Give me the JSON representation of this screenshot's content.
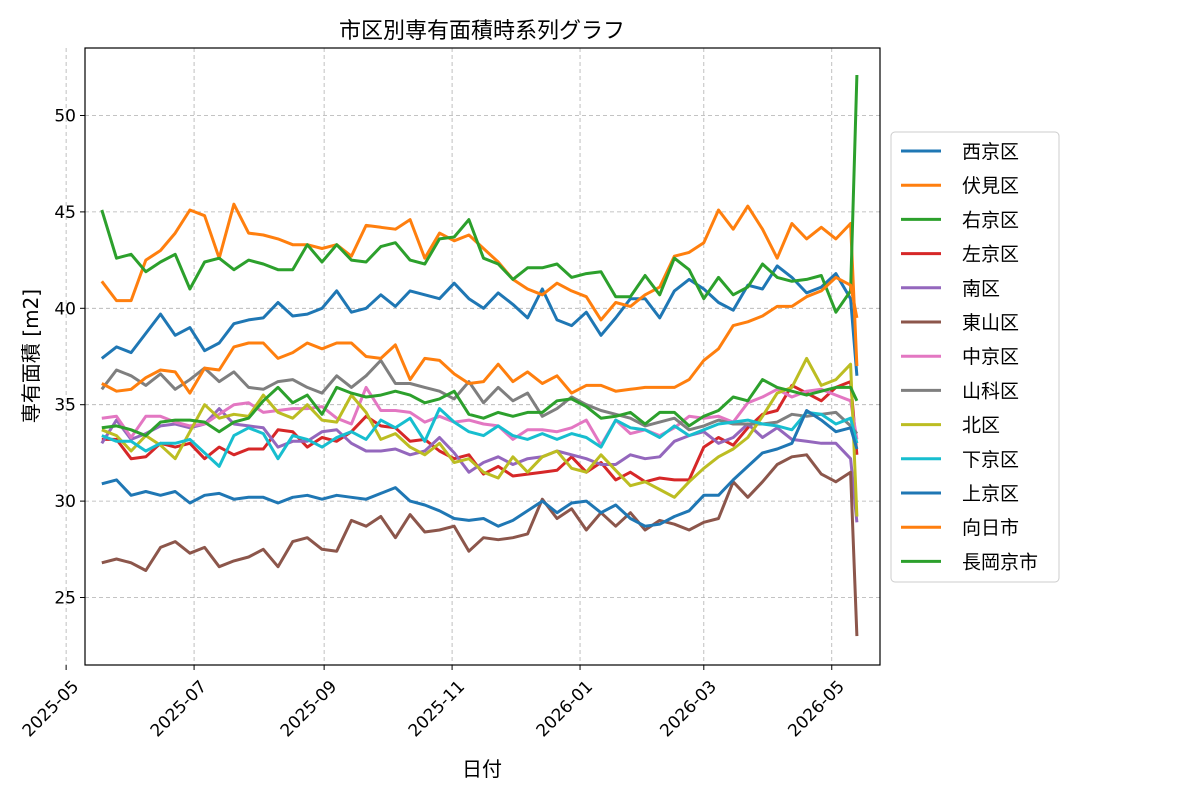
{
  "chart_data": {
    "type": "line",
    "title": "市区別専有面積時系列グラフ",
    "xlabel": "日付",
    "ylabel": "専有面積 [m2]",
    "ylim": [
      21.5,
      53.5
    ],
    "xlim": [
      "2025-05-10",
      "2026-05-24"
    ],
    "x_ticks": [
      "2025-05",
      "2025-07",
      "2025-09",
      "2025-11",
      "2026-01",
      "2026-03",
      "2026-05"
    ],
    "y_ticks": [
      25,
      30,
      35,
      40,
      45,
      50
    ],
    "grid": true,
    "legend_position": "right",
    "x": [
      "2025-05-18",
      "2025-05-25",
      "2025-06-01",
      "2025-06-08",
      "2025-06-15",
      "2025-06-22",
      "2025-06-29",
      "2025-07-06",
      "2025-07-13",
      "2025-07-20",
      "2025-07-27",
      "2025-08-03",
      "2025-08-10",
      "2025-08-17",
      "2025-08-24",
      "2025-08-31",
      "2025-09-07",
      "2025-09-14",
      "2025-09-21",
      "2025-09-28",
      "2025-10-05",
      "2025-10-12",
      "2025-10-19",
      "2025-10-26",
      "2025-11-02",
      "2025-11-09",
      "2025-11-16",
      "2025-11-23",
      "2025-11-30",
      "2025-12-07",
      "2025-12-14",
      "2025-12-21",
      "2025-12-28",
      "2026-01-04",
      "2026-01-11",
      "2026-01-18",
      "2026-01-25",
      "2026-02-01",
      "2026-02-08",
      "2026-02-15",
      "2026-02-22",
      "2026-03-01",
      "2026-03-08",
      "2026-03-15",
      "2026-03-22",
      "2026-03-29",
      "2026-04-05",
      "2026-04-12",
      "2026-04-19",
      "2026-04-26",
      "2026-05-03",
      "2026-05-10",
      "2026-05-13"
    ],
    "series": [
      {
        "name": "西京区",
        "color": "#1f77b4",
        "values": [
          37.4,
          38.0,
          37.7,
          38.7,
          39.7,
          38.6,
          39.0,
          37.8,
          38.2,
          39.2,
          39.4,
          39.5,
          40.3,
          39.6,
          39.7,
          40.0,
          40.9,
          39.8,
          40.0,
          40.7,
          40.1,
          40.9,
          40.7,
          40.5,
          41.3,
          40.5,
          40.0,
          40.8,
          40.2,
          39.5,
          41.0,
          39.4,
          39.1,
          39.8,
          38.6,
          39.5,
          40.5,
          40.5,
          39.5,
          40.9,
          41.5,
          41.0,
          40.3,
          39.9,
          41.2,
          41.0,
          42.2,
          41.6,
          40.8,
          41.1,
          41.8,
          40.5,
          36.5
        ]
      },
      {
        "name": "伏見区",
        "color": "#ff7f0e",
        "values": [
          41.4,
          40.4,
          40.4,
          42.5,
          43.0,
          43.9,
          45.1,
          44.8,
          42.6,
          45.4,
          43.9,
          43.8,
          43.6,
          43.3,
          43.3,
          43.1,
          43.3,
          42.7,
          44.3,
          44.2,
          44.1,
          44.6,
          42.6,
          43.9,
          43.5,
          43.8,
          43.1,
          42.4,
          41.5,
          41.0,
          40.7,
          41.3,
          40.9,
          40.6,
          39.4,
          40.3,
          40.1,
          40.7,
          41.1,
          42.7,
          42.9,
          43.4,
          45.1,
          44.1,
          45.3,
          44.1,
          42.6,
          44.4,
          43.6,
          44.2,
          43.6,
          44.4,
          37.0
        ]
      },
      {
        "name": "右京区",
        "color": "#2ca02c",
        "values": [
          45.1,
          42.6,
          42.8,
          41.9,
          42.4,
          42.8,
          41.0,
          42.4,
          42.6,
          42.0,
          42.5,
          42.3,
          42.0,
          42.0,
          43.3,
          42.4,
          43.3,
          42.5,
          42.4,
          43.2,
          43.4,
          42.5,
          42.3,
          43.6,
          43.7,
          44.6,
          42.6,
          42.3,
          41.5,
          42.1,
          42.1,
          42.3,
          41.6,
          41.8,
          41.9,
          40.6,
          40.6,
          41.7,
          40.7,
          42.6,
          42.0,
          40.5,
          41.6,
          40.7,
          41.1,
          42.3,
          41.6,
          41.4,
          41.5,
          41.7,
          39.8,
          40.9,
          52.1
        ]
      },
      {
        "name": "左京区",
        "color": "#d62728",
        "values": [
          33.2,
          33.2,
          32.2,
          32.3,
          33.0,
          32.8,
          33.0,
          32.2,
          32.8,
          32.4,
          32.7,
          32.7,
          33.7,
          33.6,
          32.8,
          33.3,
          33.1,
          33.6,
          34.4,
          33.9,
          33.8,
          33.1,
          33.2,
          32.6,
          32.2,
          32.4,
          31.4,
          31.8,
          31.3,
          31.4,
          31.5,
          31.6,
          32.3,
          31.5,
          32.0,
          31.1,
          31.5,
          31.0,
          31.2,
          31.1,
          31.1,
          32.8,
          33.3,
          32.9,
          33.8,
          34.5,
          34.7,
          36.0,
          35.6,
          35.2,
          35.9,
          36.2,
          32.4
        ]
      },
      {
        "name": "南区",
        "color": "#9467bd",
        "values": [
          33.0,
          34.2,
          33.2,
          33.5,
          33.9,
          34.0,
          33.8,
          34.0,
          34.8,
          34.0,
          33.9,
          33.8,
          32.8,
          33.1,
          33.1,
          33.6,
          33.7,
          33.0,
          32.6,
          32.6,
          32.7,
          32.4,
          32.6,
          33.3,
          32.5,
          31.5,
          32.0,
          32.3,
          31.9,
          32.2,
          32.3,
          32.6,
          32.4,
          32.2,
          31.9,
          31.9,
          32.4,
          32.2,
          32.3,
          33.1,
          33.4,
          33.6,
          33.0,
          33.3,
          34.0,
          33.3,
          33.8,
          33.2,
          33.1,
          33.0,
          33.0,
          32.2,
          28.9
        ]
      },
      {
        "name": "東山区",
        "color": "#8c564b",
        "values": [
          26.8,
          27.0,
          26.8,
          26.4,
          27.6,
          27.9,
          27.3,
          27.6,
          26.6,
          26.9,
          27.1,
          27.5,
          26.6,
          27.9,
          28.1,
          27.5,
          27.4,
          29.0,
          28.7,
          29.2,
          28.1,
          29.3,
          28.4,
          28.5,
          28.7,
          27.4,
          28.1,
          28.0,
          28.1,
          28.3,
          30.1,
          29.1,
          29.6,
          28.5,
          29.4,
          28.7,
          29.4,
          28.5,
          29.0,
          28.8,
          28.5,
          28.9,
          29.1,
          31.0,
          30.2,
          31.0,
          31.9,
          32.3,
          32.4,
          31.4,
          31.0,
          31.5,
          23.0
        ]
      },
      {
        "name": "中京区",
        "color": "#e377c2",
        "values": [
          34.3,
          34.4,
          33.3,
          34.4,
          34.4,
          34.1,
          33.9,
          34.0,
          34.5,
          35.0,
          35.1,
          34.6,
          34.7,
          34.8,
          34.8,
          34.9,
          34.3,
          34.0,
          35.9,
          34.7,
          34.7,
          34.6,
          34.1,
          34.4,
          34.1,
          34.2,
          34.0,
          33.9,
          33.2,
          33.7,
          33.7,
          33.6,
          33.8,
          34.2,
          32.9,
          34.2,
          33.5,
          33.7,
          33.4,
          33.8,
          34.4,
          34.3,
          34.4,
          34.1,
          35.1,
          35.4,
          35.8,
          35.4,
          35.7,
          35.8,
          35.5,
          35.2,
          33.2
        ]
      },
      {
        "name": "山科区",
        "color": "#7f7f7f",
        "values": [
          35.8,
          36.8,
          36.5,
          36.0,
          36.6,
          35.8,
          36.3,
          36.9,
          36.2,
          36.7,
          35.9,
          35.8,
          36.2,
          36.3,
          35.9,
          35.6,
          36.5,
          35.9,
          36.5,
          37.3,
          36.1,
          36.1,
          35.9,
          35.7,
          35.3,
          36.2,
          35.1,
          35.9,
          35.2,
          35.6,
          34.4,
          34.8,
          35.4,
          35.0,
          34.7,
          34.5,
          34.3,
          33.9,
          34.1,
          34.3,
          33.7,
          33.9,
          34.2,
          34.0,
          34.0,
          34.0,
          34.1,
          34.5,
          34.4,
          34.5,
          34.6,
          33.9,
          33.5
        ]
      },
      {
        "name": "北区",
        "color": "#bcbd22",
        "values": [
          33.7,
          33.4,
          32.6,
          33.4,
          32.9,
          32.2,
          33.6,
          35.0,
          34.3,
          34.5,
          34.4,
          35.5,
          34.6,
          34.3,
          35.0,
          34.2,
          34.1,
          35.5,
          34.6,
          33.2,
          33.5,
          32.8,
          32.4,
          33.0,
          32.0,
          32.2,
          31.5,
          31.2,
          32.3,
          31.5,
          32.3,
          32.6,
          31.7,
          31.5,
          32.4,
          31.6,
          30.8,
          31.0,
          30.6,
          30.2,
          31.0,
          31.7,
          32.3,
          32.7,
          33.3,
          34.4,
          35.6,
          35.9,
          37.4,
          36.0,
          36.3,
          37.1,
          29.2
        ]
      },
      {
        "name": "下京区",
        "color": "#17becf",
        "values": [
          33.4,
          33.1,
          33.1,
          32.6,
          33.0,
          33.0,
          33.2,
          32.5,
          31.8,
          33.4,
          33.8,
          33.5,
          32.2,
          33.4,
          33.2,
          32.8,
          33.3,
          33.6,
          33.2,
          34.2,
          33.8,
          34.3,
          33.1,
          34.8,
          34.1,
          33.6,
          33.4,
          33.9,
          33.4,
          33.2,
          33.5,
          33.2,
          33.5,
          33.3,
          32.8,
          34.2,
          33.8,
          33.7,
          33.3,
          33.9,
          33.4,
          33.7,
          34.0,
          34.1,
          34.2,
          34.0,
          33.9,
          33.7,
          34.6,
          34.5,
          34.0,
          34.3,
          33.0
        ]
      },
      {
        "name": "上京区",
        "color": "#1f77b4",
        "values": [
          30.9,
          31.1,
          30.3,
          30.5,
          30.3,
          30.5,
          29.9,
          30.3,
          30.4,
          30.1,
          30.2,
          30.2,
          29.9,
          30.2,
          30.3,
          30.1,
          30.3,
          30.2,
          30.1,
          30.4,
          30.7,
          30.0,
          29.8,
          29.5,
          29.1,
          29.0,
          29.1,
          28.7,
          29.0,
          29.5,
          30.0,
          29.4,
          29.9,
          30.0,
          29.4,
          29.8,
          29.1,
          28.7,
          28.8,
          29.2,
          29.5,
          30.3,
          30.3,
          31.1,
          31.8,
          32.5,
          32.7,
          33.0,
          34.7,
          34.2,
          33.6,
          33.8,
          32.7
        ]
      },
      {
        "name": "向日市",
        "color": "#ff7f0e",
        "values": [
          36.1,
          35.7,
          35.8,
          36.4,
          36.8,
          36.7,
          35.6,
          36.9,
          36.8,
          38.0,
          38.2,
          38.2,
          37.4,
          37.7,
          38.2,
          37.9,
          38.2,
          38.2,
          37.5,
          37.4,
          38.1,
          36.3,
          37.4,
          37.3,
          36.6,
          36.1,
          36.2,
          37.1,
          36.2,
          36.7,
          36.1,
          36.5,
          35.6,
          36.0,
          36.0,
          35.7,
          35.8,
          35.9,
          35.9,
          35.9,
          36.3,
          37.3,
          37.9,
          39.1,
          39.3,
          39.6,
          40.1,
          40.1,
          40.6,
          40.9,
          41.6,
          41.2,
          39.5
        ]
      },
      {
        "name": "長岡京市",
        "color": "#2ca02c",
        "values": [
          33.8,
          33.9,
          33.7,
          33.4,
          34.1,
          34.2,
          34.2,
          34.1,
          33.6,
          34.1,
          34.3,
          35.2,
          35.9,
          35.1,
          35.5,
          34.5,
          35.9,
          35.6,
          35.4,
          35.5,
          35.7,
          35.5,
          35.1,
          35.3,
          35.7,
          34.5,
          34.3,
          34.6,
          34.4,
          34.6,
          34.6,
          35.2,
          35.3,
          34.9,
          34.3,
          34.4,
          34.6,
          34.0,
          34.6,
          34.6,
          33.9,
          34.4,
          34.7,
          35.4,
          35.2,
          36.3,
          35.9,
          35.7,
          35.5,
          35.7,
          35.9,
          35.9,
          35.2
        ]
      }
    ]
  }
}
